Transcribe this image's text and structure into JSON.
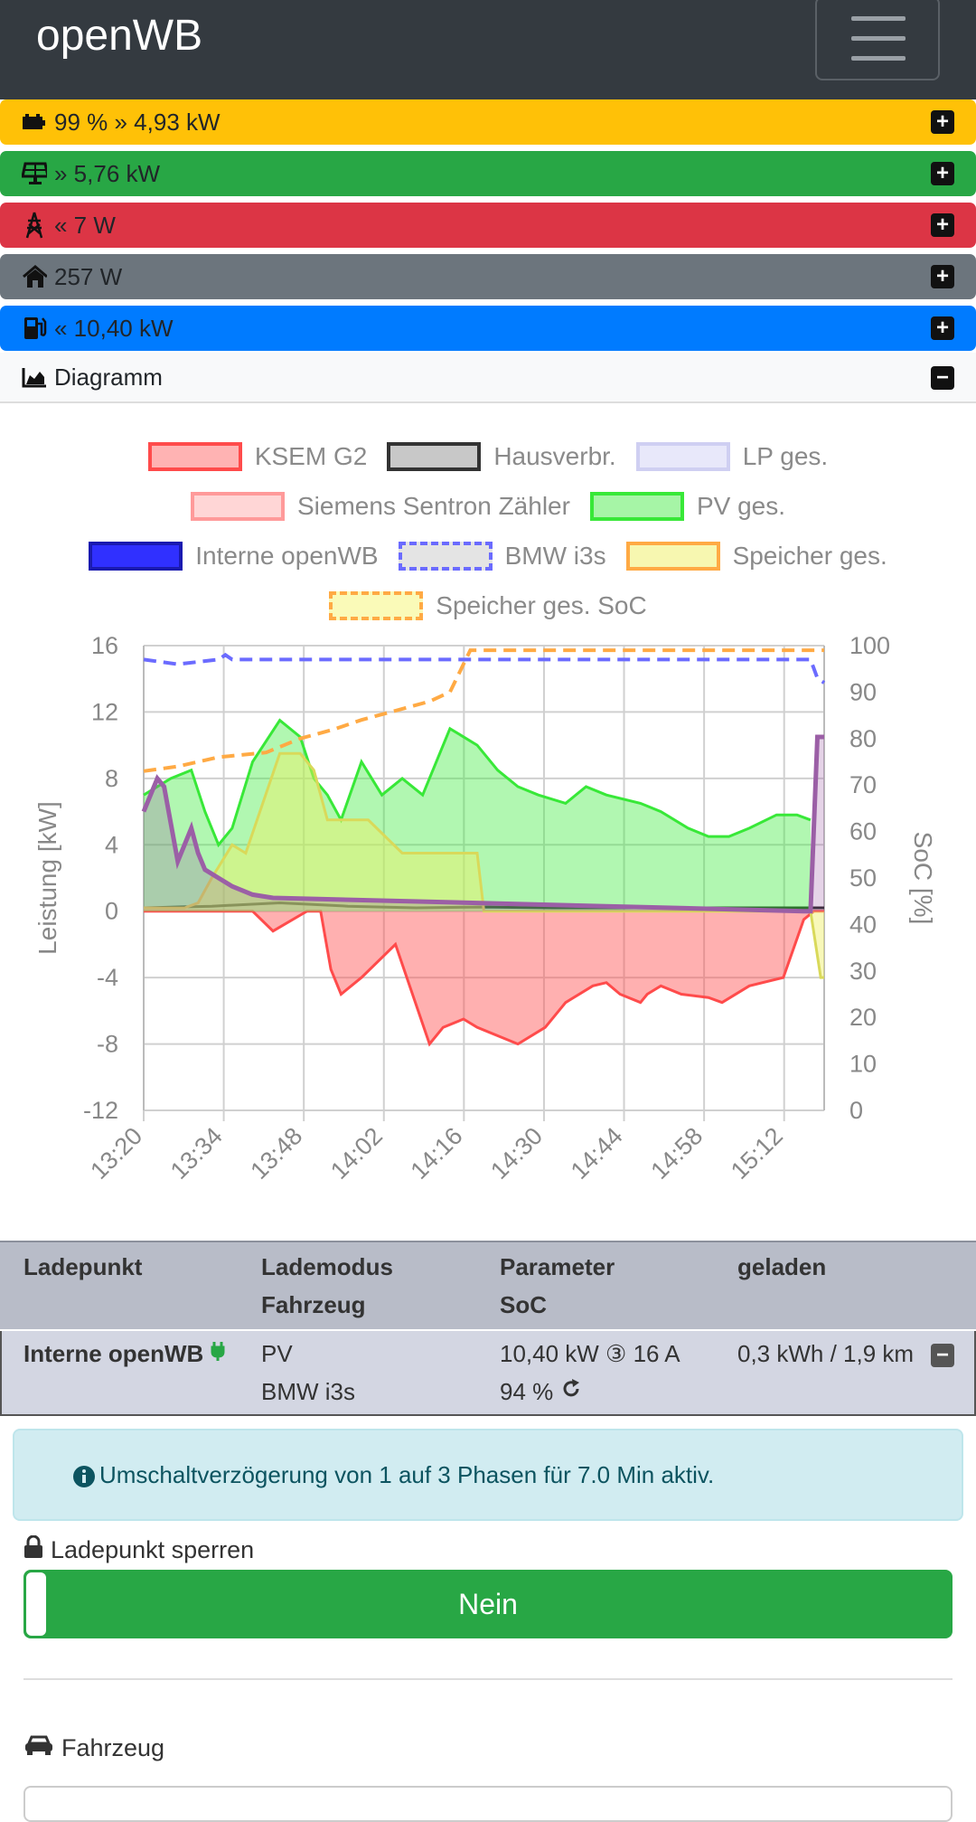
{
  "app": {
    "title": "openWB"
  },
  "bars": [
    {
      "id": "battery",
      "text": "99 % » 4,93 kW",
      "color": "#ffc107",
      "icon": "battery-icon"
    },
    {
      "id": "pv",
      "text": "» 5,76 kW",
      "color": "#28a745",
      "icon": "solar-panel-icon"
    },
    {
      "id": "grid",
      "text": "« 7 W",
      "color": "#dc3545",
      "icon": "power-tower-icon"
    },
    {
      "id": "house",
      "text": "257 W",
      "color": "#6c757d",
      "icon": "house-icon"
    },
    {
      "id": "charge",
      "text": "« 10,40 kW",
      "color": "#007bff",
      "icon": "charging-station-icon"
    }
  ],
  "diagram": {
    "label": "Diagramm"
  },
  "legend": [
    [
      "KSEM G2",
      "Hausverbr.",
      "LP ges."
    ],
    [
      "Siemens Sentron Zähler",
      "PV ges."
    ],
    [
      "Interne openWB",
      "BMW i3s",
      "Speicher ges."
    ],
    [
      "Speicher ges. SoC"
    ]
  ],
  "chart_data": {
    "type": "line",
    "ylabel": "Leistung [kW]",
    "y2label": "SoC [%]",
    "ylim": [
      -12,
      16
    ],
    "y2lim": [
      0,
      100
    ],
    "yticks": [
      "16",
      "12",
      "8",
      "4",
      "0",
      "-4",
      "-8",
      "-12"
    ],
    "y2ticks": [
      "100",
      "90",
      "80",
      "70",
      "60",
      "50",
      "40",
      "30",
      "20",
      "10",
      "0"
    ],
    "xticks": [
      "13:20",
      "13:34",
      "13:48",
      "14:02",
      "14:16",
      "14:30",
      "14:44",
      "14:58",
      "15:12"
    ],
    "grid": true,
    "series": [
      {
        "name": "KSEM G2",
        "color": "#ff4b4b",
        "x": [
          0,
          7,
          13,
          16,
          19,
          24,
          26,
          27.5,
          29,
          32,
          37,
          42,
          44,
          47,
          49,
          55,
          59,
          61,
          62,
          66,
          68,
          70,
          73,
          74,
          76,
          79,
          83,
          85,
          89,
          94,
          97,
          98.5,
          99.5,
          100
        ],
        "y": [
          0,
          0,
          0,
          0,
          -1.2,
          0,
          0,
          -3.5,
          -5,
          -4,
          -2,
          -8,
          -7,
          -6.5,
          -7,
          -8,
          -7,
          -6,
          -5.5,
          -4.5,
          -4.3,
          -5,
          -5.5,
          -5,
          -4.5,
          -5,
          -5.2,
          -5.5,
          -4.5,
          -4,
          -0.5,
          0,
          0,
          0
        ]
      },
      {
        "name": "Hausverbr.",
        "color": "#222",
        "x": [
          0,
          10,
          20,
          30,
          40,
          50,
          60,
          70,
          80,
          90,
          100
        ],
        "y": [
          0.2,
          0.3,
          0.5,
          0.3,
          0.2,
          0.25,
          0.2,
          0.2,
          0.2,
          0.2,
          0.2
        ]
      },
      {
        "name": "PV ges.",
        "color": "#38e838",
        "x": [
          0,
          4,
          7,
          9,
          11,
          13,
          16,
          20,
          23,
          25,
          27,
          29,
          32,
          35,
          38,
          41,
          45,
          49,
          52,
          55,
          58,
          62,
          65,
          68,
          73,
          76,
          80,
          83,
          86,
          89,
          93,
          96,
          98
        ],
        "y": [
          7,
          8,
          8.5,
          6,
          4,
          5,
          9,
          11.5,
          10.5,
          8,
          7,
          5.5,
          9,
          7,
          8,
          7,
          11,
          10,
          8.5,
          7.5,
          7,
          6.5,
          7.5,
          7,
          6.5,
          6,
          5,
          4.5,
          4.5,
          5,
          5.8,
          5.8,
          5.5
        ]
      },
      {
        "name": "Speicher ges.",
        "color": "#d9d95a",
        "x": [
          0,
          6,
          8,
          10,
          13,
          15,
          20,
          23,
          25,
          27,
          29,
          33,
          38,
          45,
          49,
          50,
          55,
          60,
          65,
          70,
          75,
          80,
          85,
          90,
          95,
          98,
          99.5,
          100
        ],
        "y": [
          0.2,
          0.2,
          0.5,
          2,
          4,
          3.5,
          9.5,
          9.5,
          8.5,
          5.5,
          5.5,
          5.5,
          3.5,
          3.5,
          3.5,
          0,
          0,
          0,
          0,
          0,
          0,
          0,
          0,
          0,
          0,
          0,
          -4,
          -4
        ]
      },
      {
        "name": "Interne openWB",
        "color": "#9b5fa6",
        "x": [
          0,
          2,
          3,
          5,
          7,
          8,
          9,
          11,
          13,
          16,
          19,
          97,
          98,
          99,
          100
        ],
        "y": [
          6,
          8,
          7.5,
          3,
          5,
          3.5,
          2.5,
          2,
          1.5,
          1,
          0.8,
          0,
          0,
          10.5,
          10.5
        ]
      },
      {
        "name": "BMW i3s",
        "color": "#6b6bff",
        "x": [
          0,
          5,
          11,
          12,
          13,
          98,
          99,
          100
        ],
        "y": [
          97,
          96,
          97,
          98,
          97,
          97,
          93,
          92
        ]
      },
      {
        "name": "Speicher ges. SoC",
        "color": "#ffaa44",
        "x": [
          0,
          5,
          8,
          11,
          18,
          23,
          28,
          32,
          37,
          42,
          45,
          48,
          53,
          60,
          70,
          80,
          90,
          100
        ],
        "y": [
          73,
          74,
          75,
          76,
          77,
          80,
          82,
          84,
          86,
          88,
          90,
          99,
          99,
          99,
          99,
          99,
          99,
          99
        ]
      }
    ]
  },
  "table": {
    "headers": [
      [
        "Ladepunkt",
        ""
      ],
      [
        "Lademodus",
        "Fahrzeug"
      ],
      [
        "Parameter",
        "SoC"
      ],
      [
        "geladen",
        ""
      ]
    ],
    "row": {
      "ladepunkt": "Interne openWB",
      "mode": "PV",
      "vehicle": "BMW i3s",
      "param": "10,40 kW ③ 16 A",
      "soc": "94 %",
      "charged": "0,3 kWh / 1,9 km"
    }
  },
  "alert": {
    "text": "Umschaltverzögerung von 1 auf 3 Phasen für 7.0 Min aktiv."
  },
  "lock": {
    "label": "Ladepunkt sperren",
    "value": "Nein"
  },
  "vehicle": {
    "label": "Fahrzeug"
  }
}
